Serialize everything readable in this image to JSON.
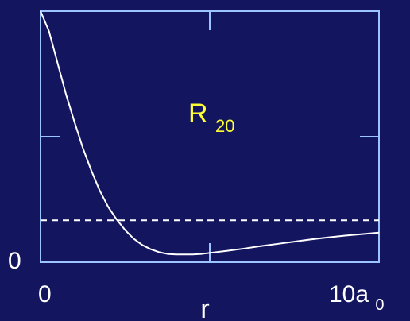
{
  "colors": {
    "background": "#14155f",
    "axes": "#9cc4ff",
    "curve": "#ffffff",
    "title": "#ffff33",
    "labels": "#ffffff"
  },
  "chart_data": {
    "type": "line",
    "title": "R",
    "title_subscript": "20",
    "xlabel": "r",
    "ylabel": "",
    "xlim": [
      0,
      10
    ],
    "ylim": [
      0,
      1
    ],
    "x_tick_labels": [
      {
        "text": "0"
      },
      {
        "text": "10a",
        "subscript": "0"
      }
    ],
    "y_tick_labels": [
      {
        "text": "0"
      }
    ],
    "grid": false,
    "series": [
      {
        "style": "solid",
        "color": "#ffffff",
        "x": [
          0,
          0.25,
          0.5,
          0.75,
          1.0,
          1.25,
          1.5,
          1.75,
          2.0,
          2.25,
          2.5,
          2.75,
          3.0,
          3.25,
          3.5,
          3.75,
          4.0,
          4.25,
          4.5,
          4.75,
          5.0,
          5.5,
          6.0,
          6.5,
          7.0,
          7.5,
          8.0,
          8.5,
          9.0,
          9.5,
          10.0
        ],
        "y": [
          1.0,
          0.92,
          0.795,
          0.67,
          0.56,
          0.455,
          0.365,
          0.285,
          0.22,
          0.17,
          0.128,
          0.094,
          0.069,
          0.052,
          0.04,
          0.033,
          0.031,
          0.031,
          0.031,
          0.033,
          0.037,
          0.045,
          0.054,
          0.064,
          0.073,
          0.082,
          0.091,
          0.099,
          0.106,
          0.112,
          0.118
        ]
      },
      {
        "style": "dashed",
        "color": "#ffffff",
        "x": [
          0,
          10
        ],
        "y": [
          0.167,
          0.167
        ]
      }
    ]
  }
}
